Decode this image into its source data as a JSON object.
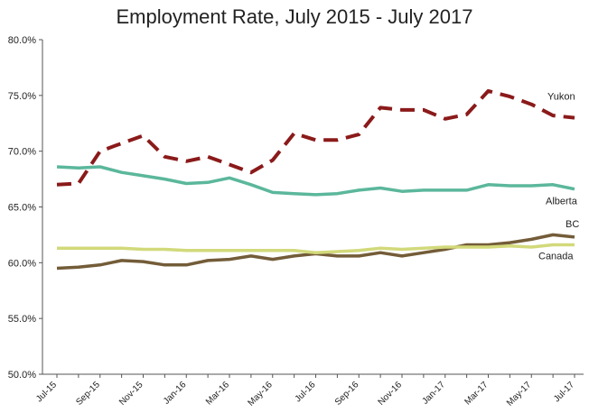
{
  "chart_data": {
    "type": "line",
    "title": "Employment Rate, July 2015 - July 2017",
    "xlabel": "",
    "ylabel": "",
    "ylim": [
      50,
      80
    ],
    "y_ticks": [
      "50.0%",
      "55.0%",
      "60.0%",
      "65.0%",
      "70.0%",
      "75.0%",
      "80.0%"
    ],
    "y_tick_values": [
      50,
      55,
      60,
      65,
      70,
      75,
      80
    ],
    "x_tick_labels": [
      "Jul-15",
      "Sep-15",
      "Nov-15",
      "Jan-16",
      "Mar-16",
      "May-16",
      "Jul-16",
      "Sep-16",
      "Nov-16",
      "Jan-17",
      "Mar-17",
      "May-17",
      "Jul-17"
    ],
    "x": [
      "Jul-15",
      "Aug-15",
      "Sep-15",
      "Oct-15",
      "Nov-15",
      "Dec-15",
      "Jan-16",
      "Feb-16",
      "Mar-16",
      "Apr-16",
      "May-16",
      "Jun-16",
      "Jul-16",
      "Aug-16",
      "Sep-16",
      "Oct-16",
      "Nov-16",
      "Dec-16",
      "Jan-17",
      "Feb-17",
      "Mar-17",
      "Apr-17",
      "May-17",
      "Jun-17",
      "Jul-17"
    ],
    "grid": false,
    "legend": "inline labels at right end of lines",
    "series": [
      {
        "name": "Yukon",
        "color": "#8b1a1a",
        "dash": "dashed",
        "values": [
          67.0,
          67.1,
          70.0,
          70.7,
          71.4,
          69.5,
          69.1,
          69.5,
          68.8,
          68.1,
          69.2,
          71.6,
          71.0,
          71.0,
          71.5,
          73.9,
          73.7,
          73.7,
          72.9,
          73.3,
          75.4,
          74.9,
          74.2,
          73.2,
          73.0
        ]
      },
      {
        "name": "Alberta",
        "color": "#5bb79b",
        "dash": "solid",
        "values": [
          68.6,
          68.5,
          68.6,
          68.1,
          67.8,
          67.5,
          67.1,
          67.2,
          67.6,
          67.0,
          66.3,
          66.2,
          66.1,
          66.2,
          66.5,
          66.7,
          66.4,
          66.5,
          66.5,
          66.5,
          67.0,
          66.9,
          66.9,
          67.0,
          66.6
        ]
      },
      {
        "name": "BC",
        "color": "#735c38",
        "dash": "solid",
        "values": [
          59.5,
          59.6,
          59.8,
          60.2,
          60.1,
          59.8,
          59.8,
          60.2,
          60.3,
          60.6,
          60.3,
          60.6,
          60.8,
          60.6,
          60.6,
          60.9,
          60.6,
          60.9,
          61.2,
          61.6,
          61.6,
          61.8,
          62.1,
          62.5,
          62.3
        ]
      },
      {
        "name": "Canada",
        "color": "#d2d97a",
        "dash": "solid",
        "values": [
          61.3,
          61.3,
          61.3,
          61.3,
          61.2,
          61.2,
          61.1,
          61.1,
          61.1,
          61.1,
          61.1,
          61.1,
          60.9,
          61.0,
          61.1,
          61.3,
          61.2,
          61.3,
          61.4,
          61.4,
          61.4,
          61.5,
          61.4,
          61.6,
          61.6
        ]
      }
    ]
  }
}
